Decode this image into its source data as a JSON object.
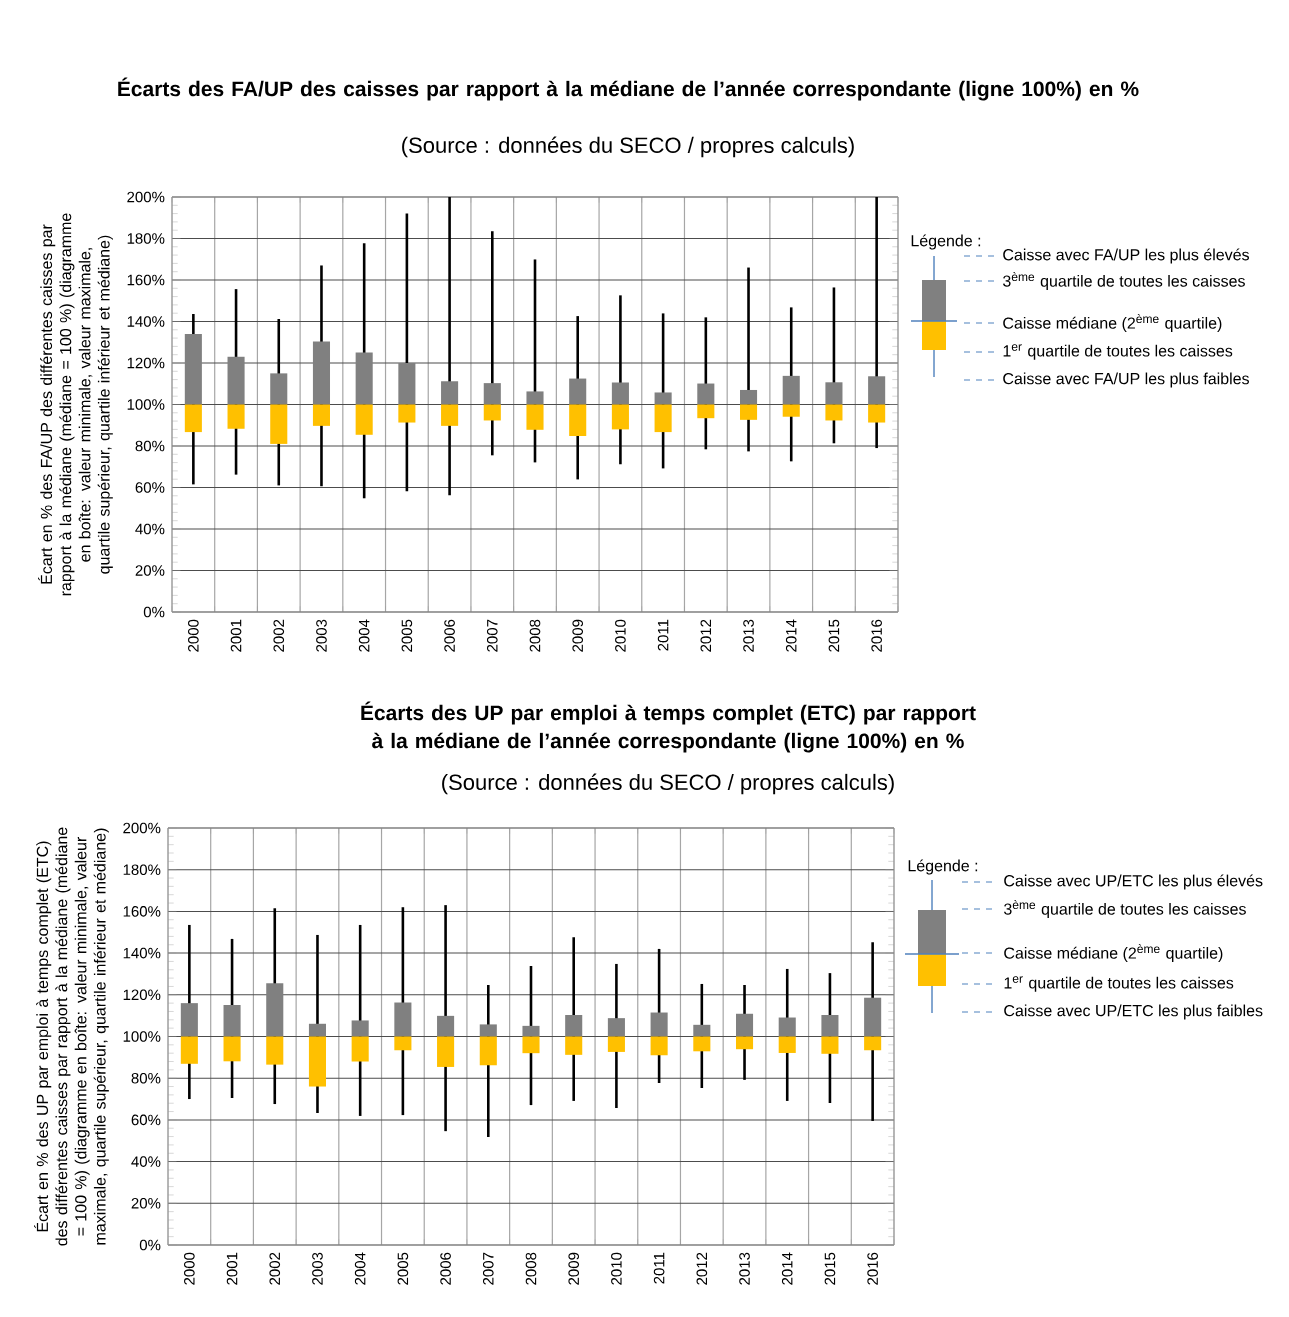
{
  "chart_data": [
    {
      "type": "box",
      "title": "Écarts des FA/UP des caisses par rapport à la médiane de l’année correspondante (ligne 100%) en %",
      "subtitle": "(Source : données du SECO / propres calculs)",
      "ylabel": "Écart en % des FA/UP des différentes caisses par rapport à la médiane (médiane = 100 %) (diagramme en boîte: valeur minimale, valeur maximale, quartile supérieur, quartile inférieur et médiane)",
      "categories": [
        "2000",
        "2001",
        "2002",
        "2003",
        "2004",
        "2005",
        "2006",
        "2007",
        "2008",
        "2009",
        "2010",
        "2011",
        "2012",
        "2013",
        "2014",
        "2015",
        "2016"
      ],
      "boxes": [
        {
          "low": 61.5,
          "q1": 86.7,
          "median": 100,
          "q3": 134,
          "high": 143.6
        },
        {
          "low": 66.2,
          "q1": 88.3,
          "median": 100,
          "q3": 123,
          "high": 155.6
        },
        {
          "low": 61,
          "q1": 81,
          "median": 100,
          "q3": 115,
          "high": 141.2
        },
        {
          "low": 60.6,
          "q1": 89.7,
          "median": 100,
          "q3": 130.4,
          "high": 167
        },
        {
          "low": 54.8,
          "q1": 85.4,
          "median": 100,
          "q3": 125,
          "high": 177.7
        },
        {
          "low": 58.2,
          "q1": 91.3,
          "median": 100,
          "q3": 120,
          "high": 192
        },
        {
          "low": 56.3,
          "q1": 89.7,
          "median": 100,
          "q3": 111.2,
          "high": 200
        },
        {
          "low": 75.5,
          "q1": 92.3,
          "median": 100,
          "q3": 110.3,
          "high": 183.5
        },
        {
          "low": 72.1,
          "q1": 87.8,
          "median": 100,
          "q3": 106.3,
          "high": 169.9
        },
        {
          "low": 63.9,
          "q1": 84.8,
          "median": 100,
          "q3": 112.5,
          "high": 142.6
        },
        {
          "low": 71.2,
          "q1": 88,
          "median": 100,
          "q3": 110.6,
          "high": 152.6
        },
        {
          "low": 69.2,
          "q1": 86.7,
          "median": 100,
          "q3": 105.8,
          "high": 143.9
        },
        {
          "low": 78.4,
          "q1": 93.4,
          "median": 100,
          "q3": 110.1,
          "high": 142
        },
        {
          "low": 77.4,
          "q1": 92.6,
          "median": 100,
          "q3": 107,
          "high": 166
        },
        {
          "low": 72.6,
          "q1": 94.1,
          "median": 100,
          "q3": 113.8,
          "high": 146.8
        },
        {
          "low": 81.3,
          "q1": 92.3,
          "median": 100,
          "q3": 110.7,
          "high": 156.4
        },
        {
          "low": 79,
          "q1": 91.3,
          "median": 100,
          "q3": 113.6,
          "high": 200
        }
      ],
      "colors": [
        [
          "#808080",
          "#ffc000"
        ],
        [
          "#808080",
          "#ffc000"
        ],
        [
          "#808080",
          "#ffc000"
        ],
        [
          "#808080",
          "#ffc000"
        ],
        [
          "#808080",
          "#ffc000"
        ],
        [
          "#808080",
          "#ffc000"
        ],
        [
          "#808080",
          "#ffc000"
        ],
        [
          "#808080",
          "#ffc000"
        ],
        [
          "#808080",
          "#ffc000"
        ],
        [
          "#808080",
          "#ffc000"
        ],
        [
          "#808080",
          "#ffc000"
        ],
        [
          "#808080",
          "#ffc000"
        ],
        [
          "#808080",
          "#ffc000"
        ],
        [
          "#808080",
          "#ffc000"
        ],
        [
          "#808080",
          "#ffc000"
        ],
        [
          "#808080",
          "#ffc000"
        ],
        [
          "#808080",
          "#ffc000"
        ]
      ],
      "ylim": [
        0,
        200
      ],
      "yticks": [
        {
          "value": 0,
          "label": "0%"
        },
        {
          "value": 20,
          "label": "20%"
        },
        {
          "value": 40,
          "label": "40%"
        },
        {
          "value": 60,
          "label": "60%"
        },
        {
          "value": 80,
          "label": "80%"
        },
        {
          "value": 100,
          "label": "100%"
        },
        {
          "value": 120,
          "label": "120%"
        },
        {
          "value": 140,
          "label": "140%"
        },
        {
          "value": 160,
          "label": "160%"
        },
        {
          "value": 180,
          "label": "180%"
        },
        {
          "value": 200,
          "label": "200%"
        }
      ],
      "grid": true,
      "annotations": [
        "Légende :",
        "Caisse avec FA/UP les plus élevés",
        "3$^{ème}$ quartile de toutes les caisses",
        "Caisse médiane (2$^{ème}$ quartile)",
        "1$^{er}$ quartile de toutes les caisses",
        "Caisse avec FA/UP les plus faibles"
      ]
    },
    {
      "type": "box",
      "title": "Écarts des UP par emploi à temps complet (ETC) par rapport à la médiane de l’année correspondante (ligne 100%) en %",
      "subtitle": "(Source : données du SECO / propres calculs)",
      "ylabel": "Écart en % des UP par emploi à temps complet (ETC) des différentes caisses par rapport à la médiane (médiane = 100 %) (diagramme en boîte: valeur minimale, valeur maximale, quartile supérieur, quartile inférieur et médiane)",
      "categories": [
        "2000",
        "2001",
        "2002",
        "2003",
        "2004",
        "2005",
        "2006",
        "2007",
        "2008",
        "2009",
        "2010",
        "2011",
        "2012",
        "2013",
        "2014",
        "2015",
        "2016"
      ],
      "boxes": [
        {
          "low": 70,
          "q1": 86.9,
          "median": 100,
          "q3": 116,
          "high": 153.5
        },
        {
          "low": 70.5,
          "q1": 88.1,
          "median": 100,
          "q3": 115.1,
          "high": 146.8
        },
        {
          "low": 67.6,
          "q1": 86.5,
          "median": 100,
          "q3": 125.5,
          "high": 161.5
        },
        {
          "low": 63.3,
          "q1": 76,
          "median": 100,
          "q3": 106.1,
          "high": 148.7
        },
        {
          "low": 61.9,
          "q1": 88,
          "median": 100,
          "q3": 107.7,
          "high": 153.5
        },
        {
          "low": 62.3,
          "q1": 93.4,
          "median": 100,
          "q3": 116.3,
          "high": 162
        },
        {
          "low": 54.6,
          "q1": 85.4,
          "median": 100,
          "q3": 109.9,
          "high": 163
        },
        {
          "low": 51.8,
          "q1": 86.2,
          "median": 100,
          "q3": 105.8,
          "high": 124.7
        },
        {
          "low": 67.1,
          "q1": 92,
          "median": 100,
          "q3": 105.1,
          "high": 133.8
        },
        {
          "low": 69.1,
          "q1": 91.2,
          "median": 100,
          "q3": 110.3,
          "high": 147.6
        },
        {
          "low": 65.7,
          "q1": 92.6,
          "median": 100,
          "q3": 108.8,
          "high": 134.8
        },
        {
          "low": 77.7,
          "q1": 91,
          "median": 100,
          "q3": 111.5,
          "high": 142
        },
        {
          "low": 75.3,
          "q1": 92.9,
          "median": 100,
          "q3": 105.6,
          "high": 125.2
        },
        {
          "low": 79.2,
          "q1": 93.9,
          "median": 100,
          "q3": 110.9,
          "high": 124.7
        },
        {
          "low": 69.1,
          "q1": 92.1,
          "median": 100,
          "q3": 109.1,
          "high": 132.4
        },
        {
          "low": 68.1,
          "q1": 91.7,
          "median": 100,
          "q3": 110.3,
          "high": 130.4
        },
        {
          "low": 59.5,
          "q1": 93.4,
          "median": 100,
          "q3": 118.6,
          "high": 145.2
        }
      ],
      "colors": [
        [
          "#808080",
          "#ffc000"
        ],
        [
          "#808080",
          "#ffc000"
        ],
        [
          "#808080",
          "#ffc000"
        ],
        [
          "#808080",
          "#ffc000"
        ],
        [
          "#808080",
          "#ffc000"
        ],
        [
          "#808080",
          "#ffc000"
        ],
        [
          "#808080",
          "#ffc000"
        ],
        [
          "#808080",
          "#ffc000"
        ],
        [
          "#808080",
          "#ffc000"
        ],
        [
          "#808080",
          "#ffc000"
        ],
        [
          "#808080",
          "#ffc000"
        ],
        [
          "#808080",
          "#ffc000"
        ],
        [
          "#808080",
          "#ffc000"
        ],
        [
          "#808080",
          "#ffc000"
        ],
        [
          "#808080",
          "#ffc000"
        ],
        [
          "#808080",
          "#ffc000"
        ],
        [
          "#808080",
          "#ffc000"
        ]
      ],
      "ylim": [
        0,
        200
      ],
      "yticks": [
        {
          "value": 0,
          "label": "0%"
        },
        {
          "value": 20,
          "label": "20%"
        },
        {
          "value": 40,
          "label": "40%"
        },
        {
          "value": 60,
          "label": "60%"
        },
        {
          "value": 80,
          "label": "80%"
        },
        {
          "value": 100,
          "label": "100%"
        },
        {
          "value": 120,
          "label": "120%"
        },
        {
          "value": 140,
          "label": "140%"
        },
        {
          "value": 160,
          "label": "160%"
        },
        {
          "value": 180,
          "label": "180%"
        },
        {
          "value": 200,
          "label": "200%"
        }
      ],
      "grid": true,
      "annotations": [
        "Légende :",
        "Caisse avec UP/ETC les plus élevés",
        "3$^{ème}$ quartile de toutes les caisses",
        "Caisse médiane (2$^{ème}$ quartile)",
        "1$^{er}$ quartile de toutes les caisses",
        "Caisse avec UP/ETC les plus faibles"
      ]
    }
  ]
}
